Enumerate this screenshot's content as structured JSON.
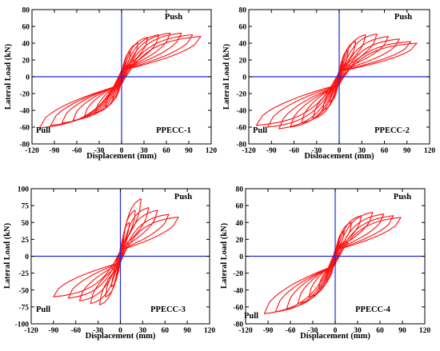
{
  "colors": {
    "loop": "#ff1010",
    "zero_axes": "#1f2ad6",
    "frame": "#000000"
  },
  "chart_data": [
    {
      "type": "line",
      "specimen": "PPECC-1",
      "push_label": "Push",
      "pull_label": "Pull",
      "xlabel": "Displacement (mm)",
      "ylabel": "Lateral Load (kN)",
      "xlim": [
        -120,
        120
      ],
      "ylim": [
        -80,
        80
      ],
      "xticks": [
        -120,
        -90,
        -60,
        -30,
        0,
        30,
        60,
        90,
        120
      ],
      "yticks": [
        -80,
        -60,
        -40,
        -20,
        0,
        20,
        40,
        60,
        80
      ],
      "cycles": [
        {
          "dmax": 5,
          "fmax": 18,
          "dmin": -5,
          "fmin": -17
        },
        {
          "dmax": 12,
          "fmax": 30,
          "dmin": -12,
          "fmin": -28
        },
        {
          "dmax": 22,
          "fmax": 40,
          "dmin": -22,
          "fmin": -36
        },
        {
          "dmax": 35,
          "fmax": 47,
          "dmin": -35,
          "fmin": -43
        },
        {
          "dmax": 50,
          "fmax": 50,
          "dmin": -50,
          "fmin": -48
        },
        {
          "dmax": 65,
          "fmax": 52,
          "dmin": -65,
          "fmin": -52
        },
        {
          "dmax": 80,
          "fmax": 52,
          "dmin": -80,
          "fmin": -55
        },
        {
          "dmax": 95,
          "fmax": 50,
          "dmin": -95,
          "fmin": -58
        },
        {
          "dmax": 106,
          "fmax": 48,
          "dmin": -110,
          "fmin": -61
        }
      ]
    },
    {
      "type": "line",
      "specimen": "PPECC-2",
      "push_label": "Push",
      "pull_label": "Pull",
      "xlabel": "Disloacement (mm)",
      "ylabel": "Lateral Load (kN)",
      "xlim": [
        -120,
        120
      ],
      "ylim": [
        -80,
        80
      ],
      "xticks": [
        -120,
        -90,
        -60,
        -30,
        0,
        30,
        60,
        90,
        120
      ],
      "yticks": [
        -80,
        -60,
        -40,
        -20,
        0,
        20,
        40,
        60,
        80
      ],
      "cycles": [
        {
          "dmax": 5,
          "fmax": 20,
          "dmin": -5,
          "fmin": -18
        },
        {
          "dmax": 12,
          "fmax": 32,
          "dmin": -12,
          "fmin": -30
        },
        {
          "dmax": 22,
          "fmax": 42,
          "dmin": -22,
          "fmin": -40
        },
        {
          "dmax": 35,
          "fmax": 50,
          "dmin": -35,
          "fmin": -50
        },
        {
          "dmax": 50,
          "fmax": 51,
          "dmin": -50,
          "fmin": -55
        },
        {
          "dmax": 65,
          "fmax": 48,
          "dmin": -65,
          "fmin": -60
        },
        {
          "dmax": 80,
          "fmax": 45,
          "dmin": -80,
          "fmin": -62
        },
        {
          "dmax": 95,
          "fmax": 42,
          "dmin": -95,
          "fmin": -60
        },
        {
          "dmax": 103,
          "fmax": 40,
          "dmin": -110,
          "fmin": -58
        }
      ]
    },
    {
      "type": "line",
      "specimen": "PPECC-3",
      "push_label": "Push",
      "pull_label": "Pull",
      "xlabel": "Displacement (mm)",
      "ylabel": "Lateral Load (kN)",
      "xlim": [
        -120,
        120
      ],
      "ylim": [
        -100,
        100
      ],
      "xticks": [
        -120,
        -90,
        -60,
        -30,
        0,
        30,
        60,
        90,
        120
      ],
      "yticks": [
        -100,
        -75,
        -50,
        -25,
        0,
        25,
        50,
        75,
        100
      ],
      "cycles": [
        {
          "dmax": 5,
          "fmax": 30,
          "dmin": -5,
          "fmin": -28
        },
        {
          "dmax": 12,
          "fmax": 50,
          "dmin": -12,
          "fmin": -45
        },
        {
          "dmax": 20,
          "fmax": 68,
          "dmin": -20,
          "fmin": -60
        },
        {
          "dmax": 28,
          "fmax": 85,
          "dmin": -28,
          "fmin": -72
        },
        {
          "dmax": 38,
          "fmax": 72,
          "dmin": -40,
          "fmin": -70
        },
        {
          "dmax": 50,
          "fmax": 68,
          "dmin": -55,
          "fmin": -66
        },
        {
          "dmax": 65,
          "fmax": 62,
          "dmin": -70,
          "fmin": -62
        },
        {
          "dmax": 78,
          "fmax": 58,
          "dmin": -90,
          "fmin": -60
        }
      ]
    },
    {
      "type": "line",
      "specimen": "PPECC-4",
      "push_label": "Push",
      "pull_label": "Pull",
      "xlabel": "Displacement (mm)",
      "ylabel": "Lateral Load (kN)",
      "xlim": [
        -120,
        120
      ],
      "ylim": [
        -80,
        80
      ],
      "xticks": [
        -120,
        -90,
        -60,
        -30,
        0,
        30,
        60,
        90,
        120
      ],
      "yticks": [
        -80,
        -60,
        -40,
        -20,
        0,
        20,
        40,
        60,
        80
      ],
      "cycles": [
        {
          "dmax": 5,
          "fmax": 18,
          "dmin": -5,
          "fmin": -16
        },
        {
          "dmax": 12,
          "fmax": 30,
          "dmin": -12,
          "fmin": -28
        },
        {
          "dmax": 22,
          "fmax": 40,
          "dmin": -22,
          "fmin": -38
        },
        {
          "dmax": 35,
          "fmax": 48,
          "dmin": -35,
          "fmin": -48
        },
        {
          "dmax": 50,
          "fmax": 52,
          "dmin": -50,
          "fmin": -56
        },
        {
          "dmax": 65,
          "fmax": 50,
          "dmin": -65,
          "fmin": -62
        },
        {
          "dmax": 78,
          "fmax": 48,
          "dmin": -80,
          "fmin": -66
        },
        {
          "dmax": 88,
          "fmax": 46,
          "dmin": -95,
          "fmin": -68
        }
      ]
    }
  ]
}
